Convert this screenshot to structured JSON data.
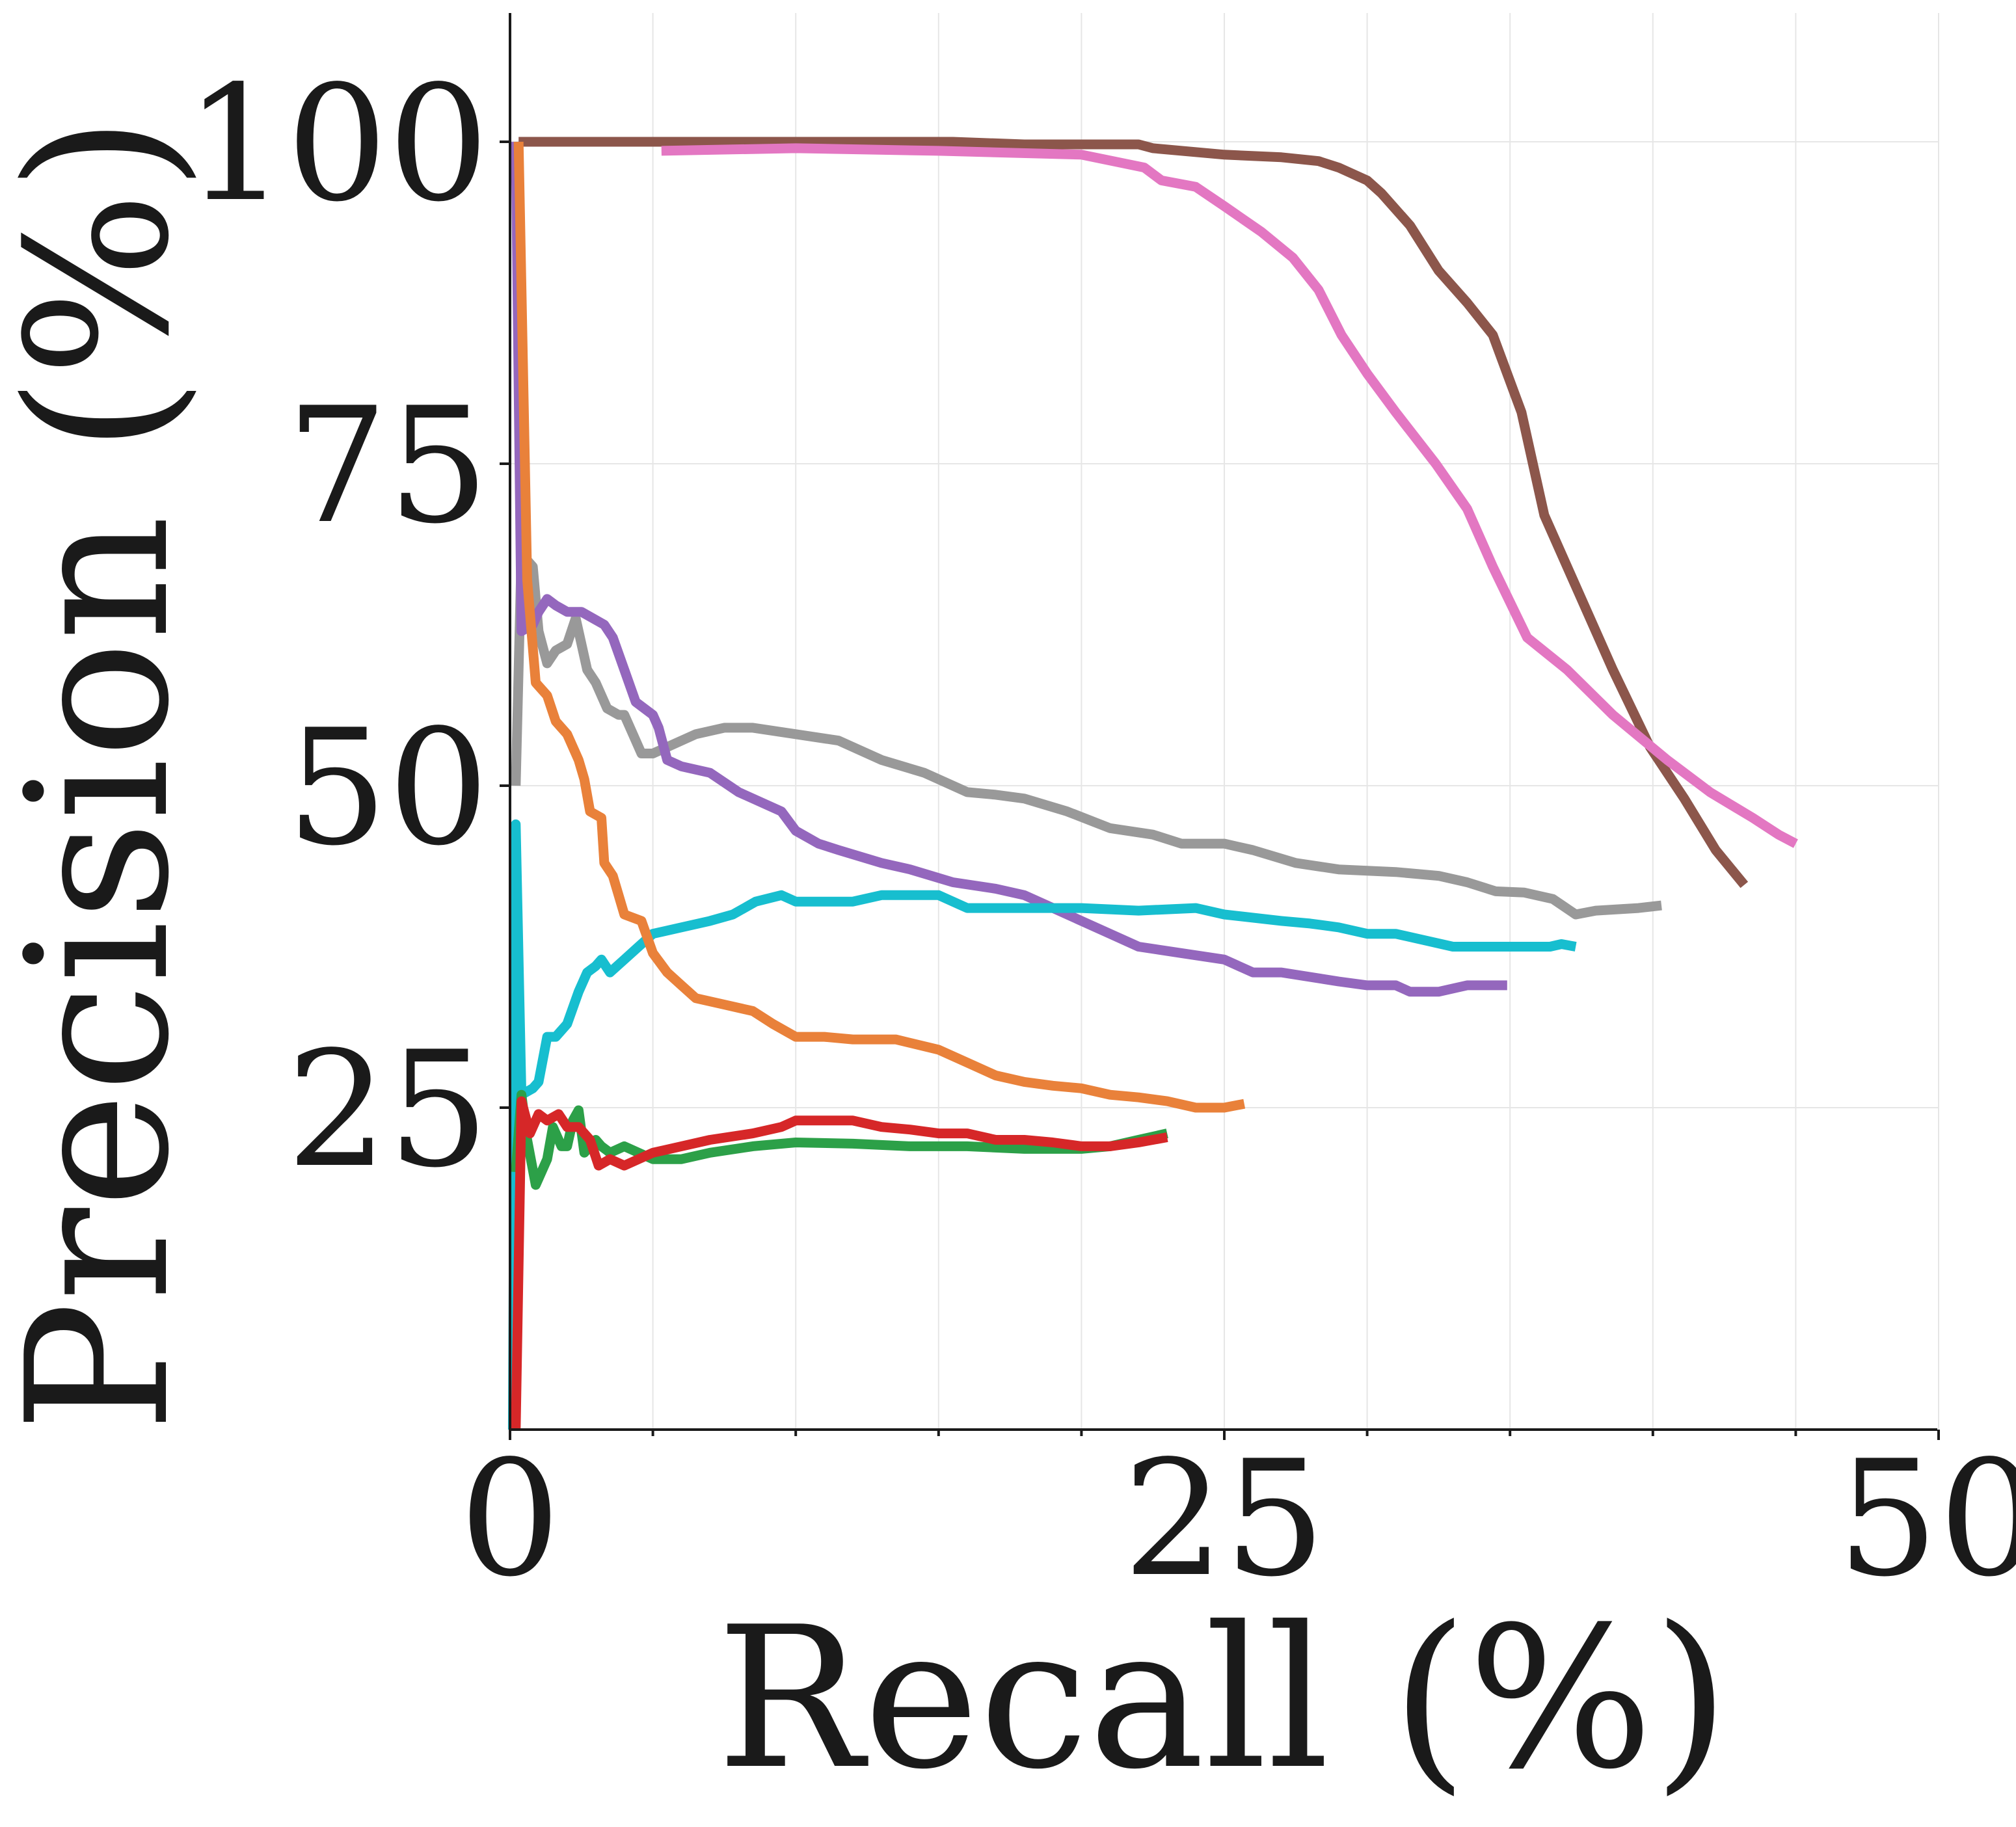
{
  "chart_data": {
    "type": "line",
    "title": "",
    "xlabel": "Recall (%)",
    "ylabel": "Precision (%)",
    "xlim": [
      0,
      50
    ],
    "ylim": [
      0,
      110
    ],
    "xticks": [
      0,
      25,
      50
    ],
    "yticks": [
      25,
      50,
      75,
      100
    ],
    "x_minor_ticks": [
      5,
      10,
      15,
      20,
      30,
      35,
      40,
      45
    ],
    "grid": true,
    "legend": "none",
    "series": [
      {
        "name": "brown",
        "color": "#8c564b",
        "points": [
          [
            0.3,
            100
          ],
          [
            5,
            100
          ],
          [
            10,
            100
          ],
          [
            15.5,
            100
          ],
          [
            18,
            99.8
          ],
          [
            22,
            99.8
          ],
          [
            22.5,
            99.5
          ],
          [
            25,
            99
          ],
          [
            27,
            98.8
          ],
          [
            28.3,
            98.5
          ],
          [
            29,
            98
          ],
          [
            30,
            97
          ],
          [
            30.5,
            96
          ],
          [
            31.5,
            93.5
          ],
          [
            32.5,
            90
          ],
          [
            33.5,
            87.5
          ],
          [
            34.4,
            85
          ],
          [
            35.4,
            79
          ],
          [
            36.2,
            71
          ],
          [
            37.4,
            65
          ],
          [
            38.6,
            59
          ],
          [
            39.9,
            53
          ],
          [
            41.1,
            49
          ],
          [
            42.2,
            45
          ],
          [
            43.2,
            42.3
          ]
        ]
      },
      {
        "name": "pink",
        "color": "#e377c2",
        "points": [
          [
            5.3,
            99.3
          ],
          [
            10,
            99.5
          ],
          [
            15,
            99.3
          ],
          [
            20,
            99
          ],
          [
            22.2,
            98
          ],
          [
            22.8,
            97
          ],
          [
            24,
            96.5
          ],
          [
            25,
            95
          ],
          [
            26.3,
            93
          ],
          [
            27.4,
            91
          ],
          [
            28.3,
            88.5
          ],
          [
            29.1,
            85
          ],
          [
            30,
            82
          ],
          [
            31,
            79
          ],
          [
            32.4,
            75
          ],
          [
            33.5,
            71.5
          ],
          [
            34.4,
            67
          ],
          [
            35.6,
            61.5
          ],
          [
            37,
            59
          ],
          [
            38.6,
            55.5
          ],
          [
            40.5,
            52
          ],
          [
            42,
            49.5
          ],
          [
            43.5,
            47.5
          ],
          [
            44.4,
            46.2
          ],
          [
            45,
            45.5
          ]
        ]
      },
      {
        "name": "gray",
        "color": "#999999",
        "points": [
          [
            0.2,
            50
          ],
          [
            0.4,
            68
          ],
          [
            0.8,
            67
          ],
          [
            1,
            62
          ],
          [
            1.3,
            59.5
          ],
          [
            1.6,
            60.5
          ],
          [
            2,
            61
          ],
          [
            2.3,
            63
          ],
          [
            2.7,
            59
          ],
          [
            3,
            58
          ],
          [
            3.4,
            56
          ],
          [
            3.8,
            55.5
          ],
          [
            4,
            55.5
          ],
          [
            4.3,
            54
          ],
          [
            4.6,
            52.5
          ],
          [
            5,
            52.5
          ],
          [
            5.5,
            53
          ],
          [
            6.5,
            54
          ],
          [
            7.5,
            54.5
          ],
          [
            8.5,
            54.5
          ],
          [
            10,
            54
          ],
          [
            11.5,
            53.5
          ],
          [
            13,
            52
          ],
          [
            14.5,
            51
          ],
          [
            16,
            49.5
          ],
          [
            17,
            49.3
          ],
          [
            18,
            49
          ],
          [
            19.5,
            48
          ],
          [
            21,
            46.7
          ],
          [
            22.5,
            46.2
          ],
          [
            23.5,
            45.5
          ],
          [
            25,
            45.5
          ],
          [
            26,
            45
          ],
          [
            27.5,
            44
          ],
          [
            29,
            43.5
          ],
          [
            31,
            43.3
          ],
          [
            32.5,
            43
          ],
          [
            33.5,
            42.5
          ],
          [
            34.5,
            41.8
          ],
          [
            35.5,
            41.7
          ],
          [
            36.5,
            41.2
          ],
          [
            37.3,
            40
          ],
          [
            38,
            40.3
          ],
          [
            39.5,
            40.5
          ],
          [
            40.3,
            40.7
          ]
        ]
      },
      {
        "name": "purple",
        "color": "#9467bd",
        "points": [
          [
            0.2,
            100
          ],
          [
            0.4,
            62
          ],
          [
            0.8,
            62.5
          ],
          [
            1,
            63.5
          ],
          [
            1.3,
            64.5
          ],
          [
            1.6,
            64
          ],
          [
            2,
            63.5
          ],
          [
            2.5,
            63.5
          ],
          [
            3.3,
            62.5
          ],
          [
            3.6,
            61.5
          ],
          [
            4,
            59
          ],
          [
            4.4,
            56.5
          ],
          [
            5,
            55.5
          ],
          [
            5.2,
            54.5
          ],
          [
            5.5,
            52
          ],
          [
            6,
            51.5
          ],
          [
            7,
            51
          ],
          [
            8,
            49.5
          ],
          [
            9.5,
            48
          ],
          [
            10,
            46.5
          ],
          [
            10.8,
            45.5
          ],
          [
            11.5,
            45
          ],
          [
            13,
            44
          ],
          [
            14,
            43.5
          ],
          [
            15.5,
            42.5
          ],
          [
            17,
            42
          ],
          [
            18,
            41.5
          ],
          [
            19,
            40.5
          ],
          [
            20,
            39.5
          ],
          [
            21,
            38.5
          ],
          [
            22,
            37.5
          ],
          [
            23.5,
            37
          ],
          [
            25,
            36.5
          ],
          [
            26,
            35.5
          ],
          [
            27,
            35.5
          ],
          [
            29,
            34.8
          ],
          [
            30,
            34.5
          ],
          [
            31,
            34.5
          ],
          [
            31.5,
            34
          ],
          [
            32.5,
            34
          ],
          [
            33.5,
            34.5
          ],
          [
            34.5,
            34.5
          ],
          [
            34.9,
            34.5
          ]
        ]
      },
      {
        "name": "cyan",
        "color": "#17becf",
        "points": [
          [
            0.1,
            0
          ],
          [
            0.2,
            47
          ],
          [
            0.4,
            26
          ],
          [
            0.8,
            26.5
          ],
          [
            1,
            27
          ],
          [
            1.3,
            30.5
          ],
          [
            1.6,
            30.5
          ],
          [
            2,
            31.5
          ],
          [
            2.4,
            34
          ],
          [
            2.7,
            35.5
          ],
          [
            3,
            36
          ],
          [
            3.2,
            36.5
          ],
          [
            3.5,
            35.5
          ],
          [
            4,
            36.5
          ],
          [
            4.5,
            37.5
          ],
          [
            5,
            38.5
          ],
          [
            6,
            39
          ],
          [
            7,
            39.5
          ],
          [
            7.8,
            40
          ],
          [
            8.6,
            41
          ],
          [
            9.5,
            41.5
          ],
          [
            10,
            41
          ],
          [
            12,
            41
          ],
          [
            13,
            41.5
          ],
          [
            14,
            41.5
          ],
          [
            15,
            41.5
          ],
          [
            16,
            40.5
          ],
          [
            18,
            40.5
          ],
          [
            20,
            40.5
          ],
          [
            22,
            40.3
          ],
          [
            24,
            40.5
          ],
          [
            25,
            40
          ],
          [
            27,
            39.5
          ],
          [
            28,
            39.3
          ],
          [
            29,
            39
          ],
          [
            30,
            38.5
          ],
          [
            31,
            38.5
          ],
          [
            32,
            38
          ],
          [
            33,
            37.5
          ],
          [
            34.5,
            37.5
          ],
          [
            35.5,
            37.5
          ],
          [
            36.4,
            37.5
          ],
          [
            36.8,
            37.7
          ],
          [
            37.3,
            37.5
          ]
        ]
      },
      {
        "name": "orange",
        "color": "#e9813a",
        "points": [
          [
            0.3,
            100
          ],
          [
            0.6,
            66
          ],
          [
            0.9,
            58
          ],
          [
            1.3,
            57
          ],
          [
            1.6,
            55
          ],
          [
            2,
            54
          ],
          [
            2.4,
            52
          ],
          [
            2.6,
            50.5
          ],
          [
            2.8,
            48
          ],
          [
            3.2,
            47.5
          ],
          [
            3.3,
            44
          ],
          [
            3.6,
            43
          ],
          [
            3.8,
            41.5
          ],
          [
            4,
            40
          ],
          [
            4.6,
            39.5
          ],
          [
            5,
            37
          ],
          [
            5.5,
            35.5
          ],
          [
            6,
            34.5
          ],
          [
            6.5,
            33.5
          ],
          [
            7.5,
            33
          ],
          [
            8.5,
            32.5
          ],
          [
            9.2,
            31.5
          ],
          [
            10,
            30.5
          ],
          [
            11,
            30.5
          ],
          [
            12,
            30.3
          ],
          [
            13.5,
            30.3
          ],
          [
            15,
            29.5
          ],
          [
            16,
            28.5
          ],
          [
            17,
            27.5
          ],
          [
            18,
            27
          ],
          [
            19,
            26.7
          ],
          [
            20,
            26.5
          ],
          [
            21,
            26
          ],
          [
            22,
            25.8
          ],
          [
            23,
            25.5
          ],
          [
            24,
            25
          ],
          [
            25,
            25
          ],
          [
            25.7,
            25.3
          ]
        ]
      },
      {
        "name": "green",
        "color": "#2ca048",
        "points": [
          [
            0.2,
            20
          ],
          [
            0.4,
            26
          ],
          [
            0.6,
            22.5
          ],
          [
            0.9,
            19
          ],
          [
            1,
            19.5
          ],
          [
            1.3,
            21
          ],
          [
            1.5,
            23.5
          ],
          [
            1.8,
            22
          ],
          [
            2,
            22
          ],
          [
            2.2,
            24
          ],
          [
            2.4,
            24.8
          ],
          [
            2.6,
            21.5
          ],
          [
            3,
            22.5
          ],
          [
            3.2,
            22
          ],
          [
            3.5,
            21.5
          ],
          [
            4,
            22
          ],
          [
            4.5,
            21.5
          ],
          [
            5,
            21
          ],
          [
            6,
            21
          ],
          [
            7,
            21.5
          ],
          [
            8.5,
            22
          ],
          [
            10,
            22.3
          ],
          [
            12,
            22.2
          ],
          [
            14,
            22
          ],
          [
            16,
            22
          ],
          [
            18,
            21.8
          ],
          [
            20,
            21.8
          ],
          [
            21,
            22
          ],
          [
            22,
            22.5
          ],
          [
            23,
            23
          ]
        ]
      },
      {
        "name": "red",
        "color": "#d62728",
        "points": [
          [
            0.2,
            0
          ],
          [
            0.4,
            25.5
          ],
          [
            0.7,
            23
          ],
          [
            1,
            24.5
          ],
          [
            1.3,
            24
          ],
          [
            1.7,
            24.5
          ],
          [
            2,
            23.5
          ],
          [
            2.4,
            23.5
          ],
          [
            2.8,
            22.5
          ],
          [
            3.1,
            20.5
          ],
          [
            3.5,
            21
          ],
          [
            4,
            20.5
          ],
          [
            4.5,
            21
          ],
          [
            5,
            21.5
          ],
          [
            6,
            22
          ],
          [
            7,
            22.5
          ],
          [
            8.5,
            23
          ],
          [
            9.5,
            23.5
          ],
          [
            10,
            24
          ],
          [
            11,
            24
          ],
          [
            12,
            24
          ],
          [
            13,
            23.5
          ],
          [
            14,
            23.3
          ],
          [
            15,
            23
          ],
          [
            16,
            23
          ],
          [
            17,
            22.5
          ],
          [
            18,
            22.5
          ],
          [
            19,
            22.3
          ],
          [
            20,
            22
          ],
          [
            21,
            22
          ],
          [
            22,
            22.3
          ],
          [
            23,
            22.7
          ]
        ]
      }
    ]
  }
}
